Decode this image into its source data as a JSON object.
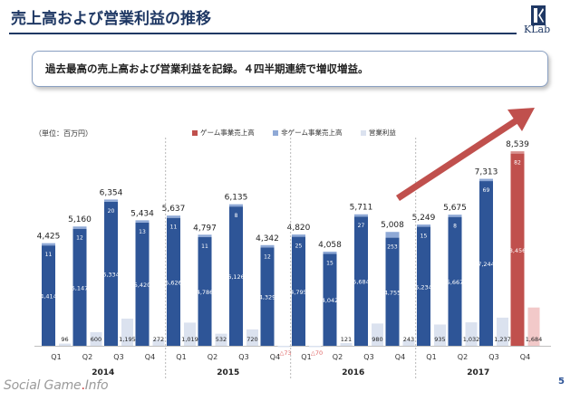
{
  "header": {
    "title": "売上高および営業利益の推移",
    "logo_text": "KLab"
  },
  "callout": {
    "text": "過去最高の売上高および営業利益を記録。４四半期連続で増収増益。"
  },
  "page_number": "5",
  "watermark": {
    "part1": "Social Game",
    "dot": ".",
    "part2": "Info"
  },
  "colors": {
    "title": "#1f3864",
    "game": "#2e5597",
    "nongame": "#8fa9d6",
    "op": "#dbe2ef",
    "highlight": "#c0504d",
    "highlight_op": "#f2c9c9",
    "arrow": "#c0504d",
    "divider": "#a6a6a6"
  },
  "chart_data": {
    "type": "bar",
    "unit_label": "（単位：百万円）",
    "legend": [
      "ゲーム事業売上高",
      "非ゲーム事業売上高",
      "営業利益"
    ],
    "categories": [
      "Q1",
      "Q2",
      "Q3",
      "Q4",
      "Q1",
      "Q2",
      "Q3",
      "Q4",
      "Q1",
      "Q2",
      "Q3",
      "Q4",
      "Q1",
      "Q2",
      "Q3",
      "Q4"
    ],
    "years": [
      {
        "label": "2014",
        "start": 0,
        "count": 4
      },
      {
        "label": "2015",
        "start": 4,
        "count": 4
      },
      {
        "label": "2016",
        "start": 8,
        "count": 4
      },
      {
        "label": "2017",
        "start": 12,
        "count": 4
      }
    ],
    "series": [
      {
        "name": "ゲーム事業売上高",
        "values": [
          4414,
          5147,
          6334,
          5420,
          5626,
          4786,
          6126,
          4329,
          4795,
          4042,
          5684,
          4755,
          5234,
          5667,
          7244,
          8456
        ]
      },
      {
        "name": "非ゲーム事業売上高",
        "values": [
          11,
          12,
          20,
          13,
          11,
          11,
          8,
          12,
          25,
          15,
          27,
          253,
          15,
          8,
          69,
          82
        ]
      },
      {
        "name": "営業利益",
        "values": [
          96,
          600,
          1195,
          272,
          1019,
          532,
          720,
          -73,
          -70,
          121,
          980,
          243,
          935,
          1032,
          1237,
          1684
        ]
      }
    ],
    "totals": [
      4425,
      5160,
      6354,
      5434,
      5637,
      4797,
      6135,
      4342,
      4820,
      4058,
      5711,
      5008,
      5249,
      5675,
      7313,
      8539
    ],
    "labels": {
      "game": [
        "4,414",
        "5,147",
        "6,334",
        "5,420",
        "5,626",
        "4,786",
        "6,126",
        "4,329",
        "4,795",
        "4,042",
        "5,684",
        "4,755",
        "5,234",
        "5,667",
        "7,244",
        "8,456"
      ],
      "nongame": [
        "11",
        "12",
        "20",
        "13",
        "11",
        "11",
        "8",
        "12",
        "25",
        "15",
        "27",
        "253",
        "15",
        "8",
        "69",
        "82"
      ],
      "op": [
        "96",
        "600",
        "1,195",
        "272",
        "1,019",
        "532",
        "720",
        "△73",
        "△70",
        "121",
        "980",
        "243",
        "935",
        "1,032",
        "1,237",
        "1,684"
      ],
      "totals": [
        "4,425",
        "5,160",
        "6,354",
        "5,434",
        "5,637",
        "4,797",
        "6,135",
        "4,342",
        "4,820",
        "4,058",
        "5,711",
        "5,008",
        "5,249",
        "5,675",
        "7,313",
        "8,539"
      ]
    },
    "highlight_index": 15,
    "ylim": [
      0,
      8600
    ]
  }
}
